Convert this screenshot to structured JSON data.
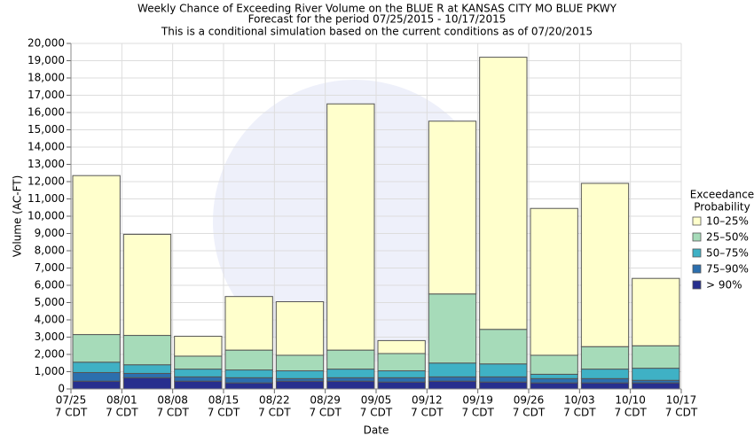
{
  "chart_data": {
    "type": "stacked-bar",
    "title": "Weekly Chance of Exceeding River Volume on the BLUE R at KANSAS CITY MO BLUE PKWY",
    "subtitle": "Forecast for the period 07/25/2015 - 10/17/2015",
    "note": "This is a conditional simulation based on the current conditions as of 07/20/2015",
    "y_label": "Volume (AC-FT)",
    "x_label": "Date",
    "legend_title": [
      "Exceedance",
      "Probability"
    ],
    "xticks": [
      {
        "date": "07/25",
        "time": "7 CDT"
      },
      {
        "date": "08/01",
        "time": "7 CDT"
      },
      {
        "date": "08/08",
        "time": "7 CDT"
      },
      {
        "date": "08/15",
        "time": "7 CDT"
      },
      {
        "date": "08/22",
        "time": "7 CDT"
      },
      {
        "date": "08/29",
        "time": "7 CDT"
      },
      {
        "date": "09/05",
        "time": "7 CDT"
      },
      {
        "date": "09/12",
        "time": "7 CDT"
      },
      {
        "date": "09/19",
        "time": "7 CDT"
      },
      {
        "date": "09/26",
        "time": "7 CDT"
      },
      {
        "date": "10/03",
        "time": "7 CDT"
      },
      {
        "date": "10/10",
        "time": "7 CDT"
      },
      {
        "date": "10/17",
        "time": "7 CDT"
      }
    ],
    "ylim": [
      0,
      20000
    ],
    "yticks": [
      0,
      {
        "value": 1000,
        "label": "1,000"
      },
      {
        "value": 2000,
        "label": "2,000"
      },
      {
        "value": 3000,
        "label": "3,000"
      },
      {
        "value": 4000,
        "label": "4,000"
      },
      {
        "value": 5000,
        "label": "5,000"
      },
      {
        "value": 6000,
        "label": "6,000"
      },
      {
        "value": 7000,
        "label": "7,000"
      },
      {
        "value": 8000,
        "label": "8,000"
      },
      {
        "value": 9000,
        "label": "9,000"
      },
      {
        "value": 10000,
        "label": "10,000"
      },
      {
        "value": 11000,
        "label": "11,000"
      },
      {
        "value": 12000,
        "label": "12,000"
      },
      {
        "value": 13000,
        "label": "13,000"
      },
      {
        "value": 14000,
        "label": "14,000"
      },
      {
        "value": 15000,
        "label": "15,000"
      },
      {
        "value": 16000,
        "label": "16,000"
      },
      {
        "value": 17000,
        "label": "17,000"
      },
      {
        "value": 18000,
        "label": "18,000"
      },
      {
        "value": 19000,
        "label": "19,000"
      },
      {
        "value": 20000,
        "label": "20,000"
      }
    ],
    "grid": true,
    "series": [
      {
        "name": "10–25%",
        "color": "#ffffcc",
        "values": [
          9200,
          5850,
          1150,
          3100,
          3100,
          14250,
          750,
          10000,
          15750,
          8500,
          9450,
          3900
        ]
      },
      {
        "name": "25–50%",
        "color": "#a6dbb9",
        "values": [
          1600,
          1700,
          750,
          1150,
          900,
          1100,
          1000,
          4000,
          2000,
          1100,
          1300,
          1300
        ]
      },
      {
        "name": "50–75%",
        "color": "#3fb1c5",
        "values": [
          600,
          500,
          450,
          450,
          450,
          500,
          400,
          800,
          750,
          250,
          550,
          700
        ]
      },
      {
        "name": "75–90%",
        "color": "#2c6fae",
        "values": [
          500,
          250,
          250,
          300,
          150,
          200,
          250,
          250,
          300,
          250,
          250,
          150
        ]
      },
      {
        "name": "> 90%",
        "color": "#272f8e",
        "values": [
          450,
          650,
          450,
          350,
          450,
          450,
          400,
          450,
          400,
          350,
          350,
          350
        ]
      }
    ]
  }
}
